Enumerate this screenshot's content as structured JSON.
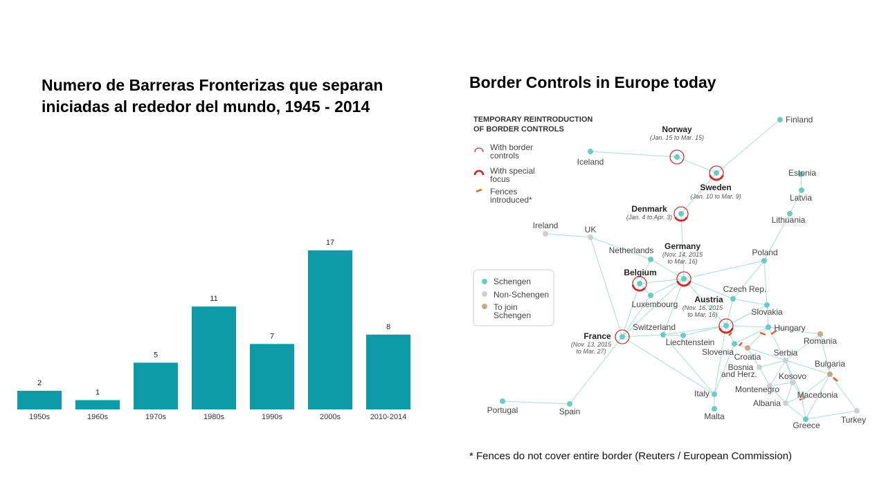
{
  "colors": {
    "bar": "#0e9aa7",
    "schengen": "#6ccbc2",
    "non_schengen": "#cfcfcf",
    "to_join": "#c7a888",
    "control_ring": "#c8312f",
    "fence": "#d4622a",
    "edge": "#a9dcd6"
  },
  "chart_data": {
    "type": "bar",
    "title": "Numero de Barreras Fronterizas que separan iniciadas al rededor del mundo, 1945 - 2014",
    "title_lines": [
      "Numero de Barreras Fronterizas que separan",
      "iniciadas al rededor del mundo, 1945 - 2014"
    ],
    "categories": [
      "1950s",
      "1960s",
      "1970s",
      "1980s",
      "1990s",
      "2000s",
      "2010-2014"
    ],
    "values": [
      2,
      1,
      5,
      11,
      7,
      17,
      8
    ],
    "xlabel": "",
    "ylabel": "",
    "ylim": [
      0,
      17
    ],
    "grid": false,
    "legend": "none"
  },
  "map": {
    "title": "Border Controls in Europe today",
    "legend_heading": [
      "TEMPORARY REINTRODUCTION",
      "OF BORDER CONTROLS"
    ],
    "legend_controls": [
      {
        "lines": [
          "With border",
          "controls"
        ]
      },
      {
        "lines": [
          "With special",
          "focus"
        ]
      },
      {
        "lines": [
          "Fences",
          "introduced*"
        ]
      }
    ],
    "legend_status": [
      "Schengen",
      "Non-Schengen",
      "To join Schengen"
    ],
    "legend_status_lines": [
      [
        "Schengen"
      ],
      [
        "Non-Schengen"
      ],
      [
        "To join",
        "Schengen"
      ]
    ],
    "countries": [
      {
        "id": "finland",
        "name": "Finland",
        "status": "schengen"
      },
      {
        "id": "iceland",
        "name": "Iceland",
        "status": "schengen"
      },
      {
        "id": "norway",
        "name": "Norway",
        "status": "schengen",
        "dates": "(Jan. 15 to Mar. 15)"
      },
      {
        "id": "sweden",
        "name": "Sweden",
        "status": "schengen",
        "dates": "(Jan. 10 to Mar. 9)"
      },
      {
        "id": "estonia",
        "name": "Estonia",
        "status": "schengen"
      },
      {
        "id": "latvia",
        "name": "Latvia",
        "status": "schengen"
      },
      {
        "id": "lithuania",
        "name": "Lithuania",
        "status": "schengen"
      },
      {
        "id": "denmark",
        "name": "Denmark",
        "status": "schengen",
        "dates": "(Jan. 4 to Apr. 3)"
      },
      {
        "id": "ireland",
        "name": "Ireland",
        "status": "non-schengen"
      },
      {
        "id": "uk",
        "name": "UK",
        "status": "non-schengen"
      },
      {
        "id": "netherlands",
        "name": "Netherlands",
        "status": "schengen"
      },
      {
        "id": "germany",
        "name": "Germany",
        "status": "schengen",
        "dates": [
          "(Nov. 14, 2015",
          "to Mar. 16)"
        ]
      },
      {
        "id": "poland",
        "name": "Poland",
        "status": "schengen"
      },
      {
        "id": "belgium",
        "name": "Belgium",
        "status": "schengen"
      },
      {
        "id": "luxembourg",
        "name": "Luxembourg",
        "status": "schengen"
      },
      {
        "id": "czech",
        "name": "Czech Rep.",
        "status": "schengen"
      },
      {
        "id": "austria",
        "name": "Austria",
        "status": "schengen",
        "dates": [
          "(Nov. 16, 2015",
          "to Mar. 16)"
        ]
      },
      {
        "id": "slovakia",
        "name": "Slovakia",
        "status": "schengen"
      },
      {
        "id": "france",
        "name": "France",
        "status": "schengen",
        "dates": [
          "(Nov. 13, 2015",
          "to Mar. 27)"
        ]
      },
      {
        "id": "switzerland",
        "name": "Switzerland",
        "status": "schengen"
      },
      {
        "id": "liechtenstein",
        "name": "Liechtenstein",
        "status": "schengen"
      },
      {
        "id": "hungary",
        "name": "Hungary",
        "status": "schengen"
      },
      {
        "id": "romania",
        "name": "Romania",
        "status": "to-join"
      },
      {
        "id": "slovenia",
        "name": "Slovenia",
        "status": "schengen"
      },
      {
        "id": "croatia",
        "name": "Croatia",
        "status": "to-join"
      },
      {
        "id": "serbia",
        "name": "Serbia",
        "status": "non-schengen"
      },
      {
        "id": "bosnia",
        "name": [
          "Bosnia",
          "and Herz."
        ],
        "status": "non-schengen"
      },
      {
        "id": "bulgaria",
        "name": "Bulgaria",
        "status": "to-join"
      },
      {
        "id": "kosovo",
        "name": "Kosovo",
        "status": "non-schengen"
      },
      {
        "id": "montenegro",
        "name": "Montenegro",
        "status": "non-schengen"
      },
      {
        "id": "italy",
        "name": "Italy",
        "status": "schengen"
      },
      {
        "id": "macedonia",
        "name": "Macedonia",
        "status": "non-schengen"
      },
      {
        "id": "albania",
        "name": "Albania",
        "status": "non-schengen"
      },
      {
        "id": "malta",
        "name": "Malta",
        "status": "schengen"
      },
      {
        "id": "portugal",
        "name": "Portugal",
        "status": "schengen"
      },
      {
        "id": "spain",
        "name": "Spain",
        "status": "schengen"
      },
      {
        "id": "greece",
        "name": "Greece",
        "status": "schengen"
      },
      {
        "id": "turkey",
        "name": "Turkey",
        "status": "non-schengen"
      }
    ]
  },
  "footnote": "* Fences do not cover entire border (Reuters / European Commission)"
}
